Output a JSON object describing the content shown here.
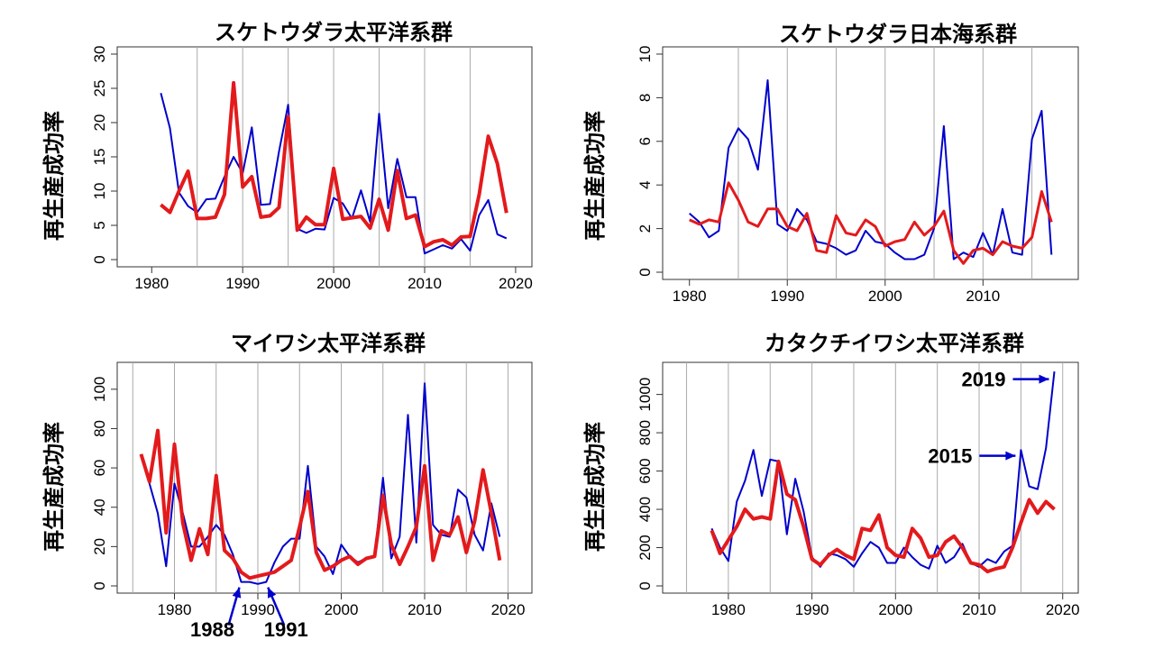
{
  "colors": {
    "blue": "#0000cc",
    "red": "#e31a1c",
    "grid": "#aaaaaa",
    "axis": "#333333"
  },
  "chart_data": [
    {
      "type": "line",
      "title": "スケトウダラ太平洋系群",
      "ylabel": "再生産成功率",
      "xlim": [
        1977,
        2021
      ],
      "ylim": [
        0,
        30
      ],
      "xticks": [
        1980,
        1990,
        2000,
        2010,
        2020
      ],
      "yticks": [
        0,
        5,
        10,
        15,
        20,
        25,
        30
      ],
      "vgrid": [
        1985,
        1990,
        1995,
        2000,
        2005,
        2010,
        2015
      ],
      "series": [
        {
          "color_key": "blue",
          "width": 2,
          "x": [
            1981,
            1982,
            1983,
            1984,
            1985,
            1986,
            1987,
            1988,
            1989,
            1990,
            1991,
            1992,
            1993,
            1994,
            1995,
            1996,
            1997,
            1998,
            1999,
            2000,
            2001,
            2002,
            2003,
            2004,
            2005,
            2006,
            2007,
            2008,
            2009,
            2010,
            2011,
            2012,
            2013,
            2014,
            2015,
            2016,
            2017,
            2018,
            2019
          ],
          "y": [
            24.3,
            19.2,
            9.8,
            7.8,
            6.9,
            8.8,
            8.9,
            12.1,
            15.0,
            12.6,
            19.3,
            8.0,
            8.1,
            15.8,
            22.6,
            4.5,
            3.9,
            4.5,
            4.4,
            9.0,
            8.2,
            6.0,
            10.1,
            5.5,
            21.3,
            7.5,
            14.7,
            9.1,
            9.1,
            0.9,
            1.5,
            2.1,
            1.6,
            3.0,
            1.3,
            6.5,
            8.7,
            3.7,
            3.1
          ]
        },
        {
          "color_key": "red",
          "width": 4,
          "x": [
            1981,
            1982,
            1983,
            1984,
            1985,
            1986,
            1987,
            1988,
            1989,
            1990,
            1991,
            1992,
            1993,
            1994,
            1995,
            1996,
            1997,
            1998,
            1999,
            2000,
            2001,
            2002,
            2003,
            2004,
            2005,
            2006,
            2007,
            2008,
            2009,
            2010,
            2011,
            2012,
            2013,
            2014,
            2015,
            2016,
            2017,
            2018,
            2019
          ],
          "y": [
            8.0,
            6.9,
            10.0,
            12.9,
            6.0,
            6.0,
            6.2,
            9.5,
            25.8,
            10.6,
            12.1,
            6.2,
            6.4,
            7.6,
            20.9,
            4.3,
            6.2,
            5.1,
            5.1,
            13.3,
            5.9,
            6.1,
            6.3,
            4.6,
            8.8,
            4.3,
            13.0,
            6.0,
            6.5,
            1.9,
            2.6,
            2.9,
            2.1,
            3.3,
            3.4,
            9.5,
            18.0,
            14.0,
            6.8
          ]
        }
      ]
    },
    {
      "type": "line",
      "title": "スケトウダラ日本海系群",
      "ylabel": "再生産成功率",
      "xlim": [
        1978,
        2019
      ],
      "ylim": [
        0,
        10
      ],
      "xticks": [
        1980,
        1990,
        2000,
        2010
      ],
      "yticks": [
        0,
        2,
        4,
        6,
        8,
        10
      ],
      "vgrid": [
        1985,
        1990,
        1995,
        2000,
        2005,
        2010,
        2015
      ],
      "series": [
        {
          "color_key": "blue",
          "width": 2,
          "x": [
            1980,
            1981,
            1982,
            1983,
            1984,
            1985,
            1986,
            1987,
            1988,
            1989,
            1990,
            1991,
            1992,
            1993,
            1994,
            1995,
            1996,
            1997,
            1998,
            1999,
            2000,
            2001,
            2002,
            2003,
            2004,
            2005,
            2006,
            2007,
            2008,
            2009,
            2010,
            2011,
            2012,
            2013,
            2014,
            2015,
            2016,
            2017
          ],
          "y": [
            2.7,
            2.3,
            1.6,
            1.9,
            5.7,
            6.6,
            6.1,
            4.7,
            8.8,
            2.2,
            1.9,
            2.9,
            2.4,
            1.4,
            1.3,
            1.1,
            0.8,
            1.0,
            1.9,
            1.4,
            1.3,
            0.9,
            0.6,
            0.6,
            0.8,
            2.0,
            6.7,
            0.6,
            0.9,
            0.7,
            1.8,
            0.8,
            2.9,
            0.9,
            0.8,
            6.1,
            7.4,
            0.8
          ]
        },
        {
          "color_key": "red",
          "width": 3,
          "x": [
            1980,
            1981,
            1982,
            1983,
            1984,
            1985,
            1986,
            1987,
            1988,
            1989,
            1990,
            1991,
            1992,
            1993,
            1994,
            1995,
            1996,
            1997,
            1998,
            1999,
            2000,
            2001,
            2002,
            2003,
            2004,
            2005,
            2006,
            2007,
            2008,
            2009,
            2010,
            2011,
            2012,
            2013,
            2014,
            2015,
            2016,
            2017
          ],
          "y": [
            2.4,
            2.2,
            2.4,
            2.3,
            4.1,
            3.3,
            2.3,
            2.1,
            2.9,
            2.9,
            2.1,
            1.9,
            2.7,
            1.0,
            0.9,
            2.6,
            1.8,
            1.7,
            2.4,
            2.1,
            1.2,
            1.4,
            1.5,
            2.3,
            1.7,
            2.1,
            2.8,
            1.0,
            0.4,
            1.0,
            1.1,
            0.8,
            1.4,
            1.2,
            1.1,
            1.6,
            3.7,
            2.3
          ]
        }
      ]
    },
    {
      "type": "line",
      "title": "マイワシ太平洋系群",
      "ylabel": "再生産成功率",
      "xlim": [
        1974,
        2022
      ],
      "ylim": [
        0,
        110
      ],
      "xticks": [
        1980,
        1990,
        2000,
        2010,
        2020
      ],
      "yticks": [
        0,
        20,
        40,
        60,
        80,
        100
      ],
      "vgrid": [
        1975,
        1980,
        1985,
        1990,
        1995,
        2000,
        2005,
        2010,
        2015,
        2020
      ],
      "series": [
        {
          "color_key": "blue",
          "width": 2,
          "x": [
            1976,
            1977,
            1978,
            1979,
            1980,
            1981,
            1982,
            1983,
            1984,
            1985,
            1986,
            1987,
            1988,
            1989,
            1990,
            1991,
            1992,
            1993,
            1994,
            1995,
            1996,
            1997,
            1998,
            1999,
            2000,
            2001,
            2002,
            2003,
            2004,
            2005,
            2006,
            2007,
            2008,
            2009,
            2010,
            2011,
            2012,
            2013,
            2014,
            2015,
            2016,
            2017,
            2018,
            2019
          ],
          "y": [
            66,
            52,
            37,
            10,
            52,
            37,
            20,
            20,
            25,
            31,
            26,
            16,
            2,
            2,
            1,
            2,
            12,
            20,
            24,
            24,
            61,
            20,
            15,
            6,
            21,
            15,
            12,
            14,
            15,
            55,
            14,
            25,
            87,
            22,
            103,
            31,
            26,
            25,
            49,
            45,
            26,
            18,
            42,
            25
          ]
        },
        {
          "color_key": "red",
          "width": 4,
          "x": [
            1976,
            1977,
            1978,
            1979,
            1980,
            1981,
            1982,
            1983,
            1984,
            1985,
            1986,
            1987,
            1988,
            1989,
            1990,
            1991,
            1992,
            1993,
            1994,
            1995,
            1996,
            1997,
            1998,
            1999,
            2000,
            2001,
            2002,
            2003,
            2004,
            2005,
            2006,
            2007,
            2008,
            2009,
            2010,
            2011,
            2012,
            2013,
            2014,
            2015,
            2016,
            2017,
            2018,
            2019
          ],
          "y": [
            67,
            53,
            79,
            27,
            72,
            32,
            13,
            29,
            16,
            56,
            18,
            14,
            7,
            4,
            5,
            6,
            7,
            10,
            13,
            30,
            48,
            17,
            8,
            10,
            13,
            15,
            11,
            14,
            15,
            46,
            21,
            11,
            20,
            30,
            61,
            13,
            28,
            26,
            35,
            17,
            33,
            59,
            37,
            13
          ]
        }
      ],
      "annotations": [
        {
          "label": "1988",
          "year": 1988,
          "y": 2
        },
        {
          "label": "1991",
          "year": 1991,
          "y": 2
        }
      ]
    },
    {
      "type": "line",
      "title": "カタクチイワシ太平洋系群",
      "ylabel": "再生産成功率",
      "xlim": [
        1973,
        2021
      ],
      "ylim": [
        0,
        1130
      ],
      "xticks": [
        1980,
        1990,
        2000,
        2010,
        2020
      ],
      "yticks": [
        0,
        200,
        400,
        600,
        800,
        1000
      ],
      "vgrid": [
        1975,
        1980,
        1985,
        1990,
        1995,
        2000,
        2005,
        2010,
        2015,
        2020
      ],
      "series": [
        {
          "color_key": "blue",
          "width": 2,
          "x": [
            1978,
            1979,
            1980,
            1981,
            1982,
            1983,
            1984,
            1985,
            1986,
            1987,
            1988,
            1989,
            1990,
            1991,
            1992,
            1993,
            1994,
            1995,
            1996,
            1997,
            1998,
            1999,
            2000,
            2001,
            2002,
            2003,
            2004,
            2005,
            2006,
            2007,
            2008,
            2009,
            2010,
            2011,
            2012,
            2013,
            2014,
            2015,
            2016,
            2017,
            2018,
            2019
          ],
          "y": [
            300,
            200,
            130,
            440,
            550,
            710,
            470,
            660,
            650,
            270,
            560,
            390,
            150,
            100,
            170,
            160,
            140,
            100,
            170,
            230,
            200,
            120,
            120,
            200,
            150,
            110,
            90,
            210,
            120,
            150,
            220,
            120,
            100,
            140,
            120,
            180,
            210,
            710,
            520,
            505,
            720,
            1120
          ]
        },
        {
          "color_key": "red",
          "width": 4,
          "x": [
            1978,
            1979,
            1980,
            1981,
            1982,
            1983,
            1984,
            1985,
            1986,
            1987,
            1988,
            1989,
            1990,
            1991,
            1992,
            1993,
            1994,
            1995,
            1996,
            1997,
            1998,
            1999,
            2000,
            2001,
            2002,
            2003,
            2004,
            2005,
            2006,
            2007,
            2008,
            2009,
            2010,
            2011,
            2012,
            2013,
            2014,
            2015,
            2016,
            2017,
            2018,
            2019
          ],
          "y": [
            290,
            170,
            240,
            310,
            400,
            350,
            360,
            350,
            650,
            480,
            450,
            310,
            140,
            110,
            160,
            190,
            160,
            140,
            300,
            290,
            370,
            200,
            160,
            150,
            300,
            250,
            150,
            160,
            230,
            260,
            200,
            120,
            110,
            75,
            90,
            100,
            200,
            330,
            450,
            380,
            440,
            400
          ]
        }
      ],
      "annotations": [
        {
          "label": "2019",
          "year": 2019,
          "y": 1080
        },
        {
          "label": "2015",
          "year": 2015,
          "y": 680
        }
      ]
    }
  ]
}
